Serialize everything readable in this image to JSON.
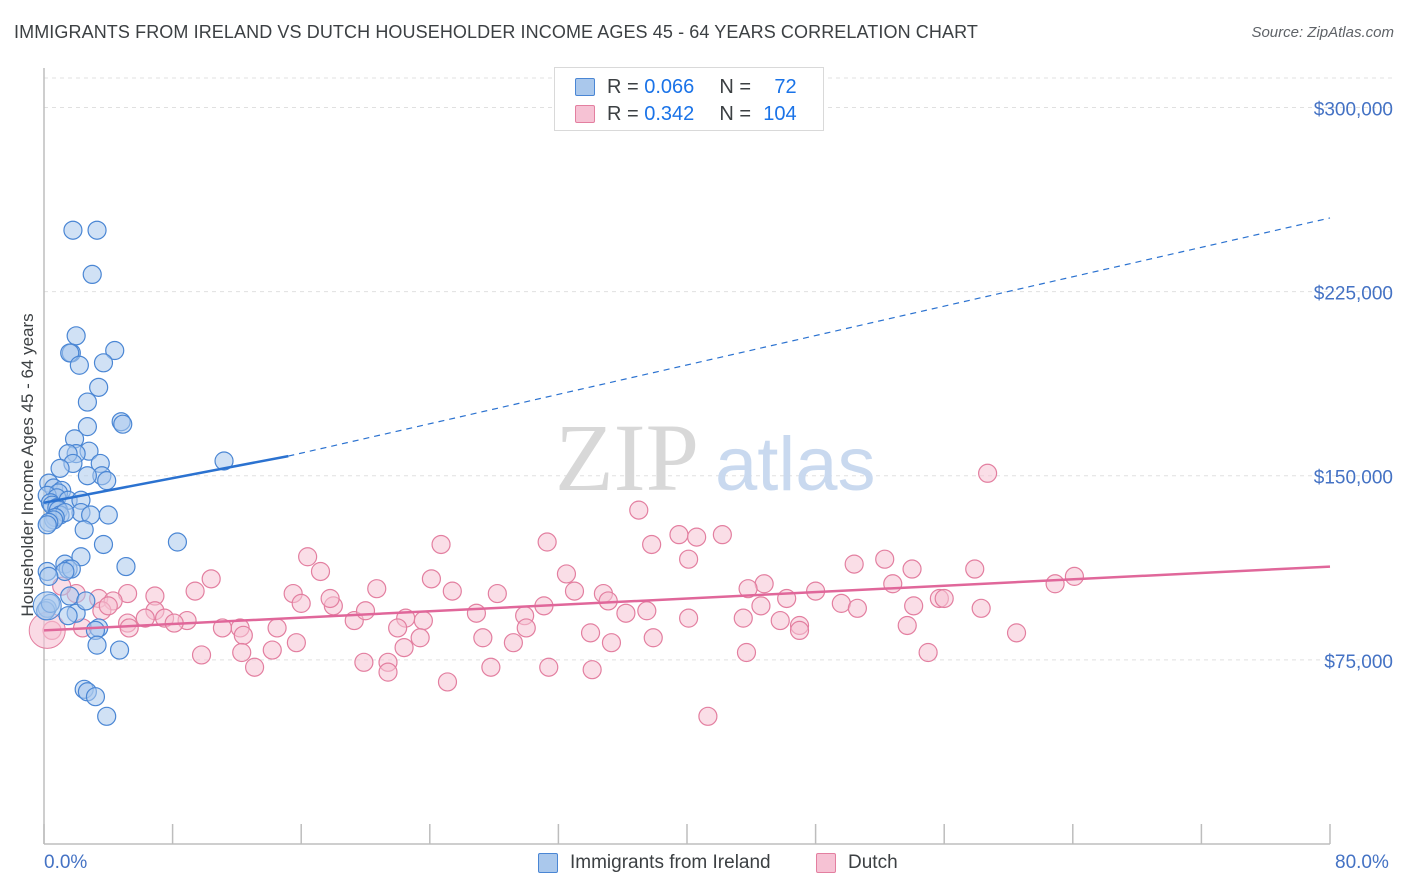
{
  "title": "IMMIGRANTS FROM IRELAND VS DUTCH HOUSEHOLDER INCOME AGES 45 - 64 YEARS CORRELATION CHART",
  "source": "Source: ZipAtlas.com",
  "watermark": {
    "zip": "ZIP",
    "atlas": "atlas"
  },
  "legend_top": [
    {
      "r_label": "R =",
      "r_value": "0.066",
      "n_label": "N =",
      "n_value": "72"
    },
    {
      "r_label": "R =",
      "r_value": "0.342",
      "n_label": "N =",
      "n_value": "104"
    }
  ],
  "bottom_legend": [
    "Immigrants from Ireland",
    "Dutch"
  ],
  "x_tick_left": "0.0%",
  "x_tick_right": "80.0%",
  "colors": {
    "blue_fill": "#aac8ec",
    "blue_stroke": "#4a86d4",
    "blue_line": "#2b72d0",
    "pink_fill": "#f6c2d4",
    "pink_stroke": "#e37fa0",
    "pink_line": "#e0679a",
    "axis_text": "#4472c4",
    "grid": "#e0e0e0"
  },
  "chart_data": {
    "type": "scatter",
    "title": "IMMIGRANTS FROM IRELAND VS DUTCH HOUSEHOLDER INCOME AGES 45 - 64 YEARS CORRELATION CHART",
    "xlabel": "",
    "ylabel": "Householder Income Ages 45 - 64 years",
    "xlim": [
      0,
      80
    ],
    "ylim": [
      0,
      312000
    ],
    "y_ticks": [
      {
        "value": 75000,
        "label": "$75,000"
      },
      {
        "value": 150000,
        "label": "$150,000"
      },
      {
        "value": 225000,
        "label": "$225,000"
      },
      {
        "value": 300000,
        "label": "$300,000"
      }
    ],
    "x_tick_values": [
      0,
      8,
      16,
      24,
      32,
      40,
      48,
      56,
      64,
      72,
      80
    ],
    "series": [
      {
        "name": "Immigrants from Ireland",
        "color": "#4a86d4",
        "trend": {
          "x0": 0,
          "y0": 139000,
          "x1": 15.2,
          "y1": 158000,
          "dash_to_x": 80,
          "dash_to_y": 255000
        },
        "points": [
          [
            1.8,
            250000
          ],
          [
            3.3,
            250000
          ],
          [
            3.0,
            232000
          ],
          [
            2.0,
            207000
          ],
          [
            4.4,
            201000
          ],
          [
            1.7,
            200000
          ],
          [
            1.6,
            200000
          ],
          [
            3.7,
            196000
          ],
          [
            2.2,
            195000
          ],
          [
            3.4,
            186000
          ],
          [
            2.7,
            180000
          ],
          [
            4.8,
            172000
          ],
          [
            4.9,
            171000
          ],
          [
            2.7,
            170000
          ],
          [
            1.9,
            165000
          ],
          [
            2.8,
            160000
          ],
          [
            2.0,
            159000
          ],
          [
            1.5,
            159000
          ],
          [
            11.2,
            156000
          ],
          [
            3.5,
            155000
          ],
          [
            1.8,
            155000
          ],
          [
            1.0,
            153000
          ],
          [
            3.6,
            150000
          ],
          [
            2.7,
            150000
          ],
          [
            3.9,
            148000
          ],
          [
            0.3,
            147000
          ],
          [
            0.6,
            145000
          ],
          [
            1.1,
            144000
          ],
          [
            0.9,
            143000
          ],
          [
            0.2,
            142000
          ],
          [
            0.8,
            141000
          ],
          [
            1.5,
            140000
          ],
          [
            2.3,
            140000
          ],
          [
            0.4,
            139000
          ],
          [
            0.5,
            138000
          ],
          [
            0.8,
            137000
          ],
          [
            0.9,
            136000
          ],
          [
            2.3,
            135000
          ],
          [
            2.9,
            134000
          ],
          [
            1.0,
            134000
          ],
          [
            1.3,
            135000
          ],
          [
            4.0,
            134000
          ],
          [
            0.7,
            133000
          ],
          [
            0.6,
            132000
          ],
          [
            0.3,
            131000
          ],
          [
            0.2,
            130000
          ],
          [
            2.5,
            128000
          ],
          [
            8.3,
            123000
          ],
          [
            3.7,
            122000
          ],
          [
            2.3,
            117000
          ],
          [
            5.1,
            113000
          ],
          [
            1.3,
            114000
          ],
          [
            1.5,
            112000
          ],
          [
            1.7,
            112000
          ],
          [
            1.3,
            111000
          ],
          [
            0.2,
            111000
          ],
          [
            0.3,
            109000
          ],
          [
            1.6,
            101000
          ],
          [
            0.2,
            96000
          ],
          [
            2.0,
            94000
          ],
          [
            1.5,
            93000
          ],
          [
            3.4,
            88000
          ],
          [
            3.2,
            87000
          ],
          [
            3.3,
            81000
          ],
          [
            4.7,
            79000
          ],
          [
            2.5,
            63000
          ],
          [
            2.7,
            62000
          ],
          [
            3.2,
            60000
          ],
          [
            3.9,
            52000
          ],
          [
            0.1,
            95000
          ],
          [
            0.4,
            98000
          ],
          [
            2.6,
            99000
          ]
        ]
      },
      {
        "name": "Dutch",
        "color": "#e37fa0",
        "trend": {
          "x0": 0,
          "y0": 87000,
          "x1": 80,
          "y1": 113000
        },
        "points": [
          [
            58.7,
            151000
          ],
          [
            37.0,
            136000
          ],
          [
            39.5,
            126000
          ],
          [
            42.2,
            126000
          ],
          [
            40.6,
            125000
          ],
          [
            31.3,
            123000
          ],
          [
            37.8,
            122000
          ],
          [
            24.7,
            122000
          ],
          [
            16.4,
            117000
          ],
          [
            40.1,
            116000
          ],
          [
            52.3,
            116000
          ],
          [
            50.4,
            114000
          ],
          [
            54.0,
            112000
          ],
          [
            17.2,
            111000
          ],
          [
            32.5,
            110000
          ],
          [
            24.1,
            108000
          ],
          [
            52.8,
            106000
          ],
          [
            44.8,
            106000
          ],
          [
            62.9,
            106000
          ],
          [
            64.1,
            109000
          ],
          [
            57.9,
            112000
          ],
          [
            20.7,
            104000
          ],
          [
            33.0,
            103000
          ],
          [
            25.4,
            103000
          ],
          [
            43.8,
            104000
          ],
          [
            48.0,
            103000
          ],
          [
            9.4,
            103000
          ],
          [
            34.8,
            102000
          ],
          [
            28.2,
            102000
          ],
          [
            15.5,
            102000
          ],
          [
            5.2,
            102000
          ],
          [
            2.0,
            102000
          ],
          [
            6.9,
            101000
          ],
          [
            55.7,
            100000
          ],
          [
            46.2,
            100000
          ],
          [
            3.4,
            100000
          ],
          [
            4.3,
            99000
          ],
          [
            16.0,
            98000
          ],
          [
            35.1,
            99000
          ],
          [
            18.0,
            97000
          ],
          [
            31.1,
            97000
          ],
          [
            58.3,
            96000
          ],
          [
            44.6,
            97000
          ],
          [
            49.6,
            98000
          ],
          [
            50.6,
            96000
          ],
          [
            36.2,
            94000
          ],
          [
            6.9,
            95000
          ],
          [
            26.9,
            94000
          ],
          [
            29.9,
            93000
          ],
          [
            7.5,
            92000
          ],
          [
            22.5,
            92000
          ],
          [
            8.9,
            91000
          ],
          [
            23.6,
            91000
          ],
          [
            8.1,
            90000
          ],
          [
            19.3,
            91000
          ],
          [
            40.1,
            92000
          ],
          [
            43.5,
            92000
          ],
          [
            5.2,
            90000
          ],
          [
            53.7,
            89000
          ],
          [
            12.2,
            88000
          ],
          [
            11.1,
            88000
          ],
          [
            30.0,
            88000
          ],
          [
            47.0,
            89000
          ],
          [
            2.4,
            88000
          ],
          [
            14.5,
            88000
          ],
          [
            5.3,
            88000
          ],
          [
            34.0,
            86000
          ],
          [
            12.4,
            85000
          ],
          [
            23.4,
            84000
          ],
          [
            27.3,
            84000
          ],
          [
            37.9,
            84000
          ],
          [
            15.7,
            82000
          ],
          [
            29.2,
            82000
          ],
          [
            35.3,
            82000
          ],
          [
            14.2,
            79000
          ],
          [
            12.3,
            78000
          ],
          [
            9.8,
            77000
          ],
          [
            43.7,
            78000
          ],
          [
            55.0,
            78000
          ],
          [
            60.5,
            86000
          ],
          [
            22.4,
            80000
          ],
          [
            47.0,
            87000
          ],
          [
            21.4,
            74000
          ],
          [
            19.9,
            74000
          ],
          [
            27.8,
            72000
          ],
          [
            31.4,
            72000
          ],
          [
            34.1,
            71000
          ],
          [
            21.4,
            70000
          ],
          [
            25.1,
            66000
          ],
          [
            41.3,
            52000
          ],
          [
            13.1,
            72000
          ],
          [
            3.6,
            95000
          ],
          [
            4.0,
            97000
          ],
          [
            0.5,
            87000
          ],
          [
            1.1,
            105000
          ],
          [
            10.4,
            108000
          ],
          [
            17.8,
            100000
          ],
          [
            37.5,
            95000
          ],
          [
            45.8,
            91000
          ],
          [
            54.1,
            97000
          ],
          [
            56.0,
            100000
          ],
          [
            20.0,
            95000
          ],
          [
            22.0,
            88000
          ],
          [
            6.3,
            92000
          ]
        ]
      }
    ]
  }
}
